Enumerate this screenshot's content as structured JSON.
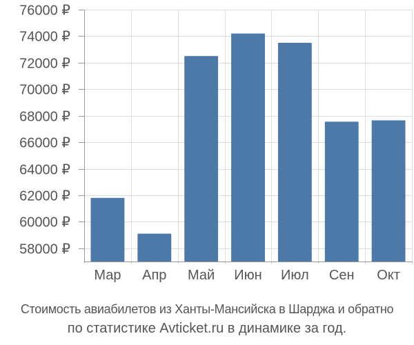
{
  "chart_data": {
    "type": "bar",
    "categories": [
      "Мар",
      "Апр",
      "Май",
      "Июн",
      "Июл",
      "Сен",
      "Окт"
    ],
    "values": [
      61800,
      59100,
      72500,
      74200,
      73500,
      67550,
      67650
    ],
    "ylim": [
      57000,
      76000
    ],
    "yticks": [
      58000,
      60000,
      62000,
      64000,
      66000,
      68000,
      70000,
      72000,
      74000,
      76000
    ],
    "currency_suffix": " ₽",
    "grid": true,
    "bar_color": "#4d79a8",
    "grid_color": "#dddddd"
  },
  "caption": {
    "line1": "Стоимость авиабилетов из Ханты-Мансийска в Шарджа и обратно",
    "line2": "по статистике Avticket.ru в динамике за год."
  }
}
